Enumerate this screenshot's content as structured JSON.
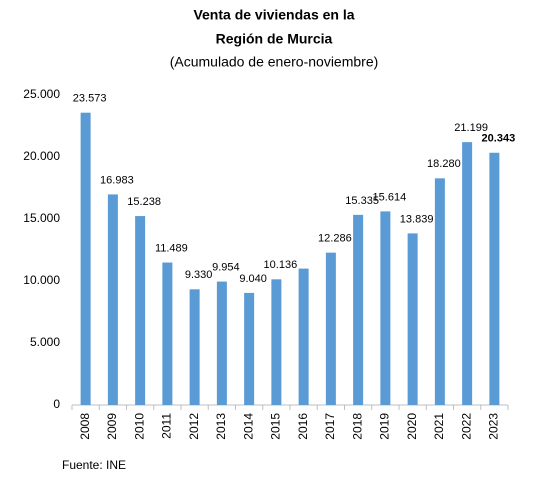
{
  "chart_data": {
    "type": "bar",
    "title": [
      "Venta de viviendas en la",
      "Región de Murcia"
    ],
    "subtitle": "(Acumulado de enero-noviembre)",
    "source": "Fuente: INE",
    "categories": [
      "2008",
      "2009",
      "2010",
      "2011",
      "2012",
      "2013",
      "2014",
      "2015",
      "2016",
      "2017",
      "2018",
      "2019",
      "2020",
      "2021",
      "2022",
      "2023"
    ],
    "values": [
      23573,
      16983,
      15238,
      11489,
      9330,
      9954,
      9040,
      10136,
      11000,
      12286,
      15335,
      15614,
      13839,
      18280,
      21199,
      20343
    ],
    "value_labels": [
      "23.573",
      "16.983",
      "15.238",
      "11.489",
      "9.330",
      "9.954",
      "9.040",
      "10.136",
      null,
      "12.286",
      "15.335",
      "15.614",
      "13.839",
      "18.280",
      "21.199",
      "20.343"
    ],
    "color": "#5b9bd5",
    "ylim": [
      0,
      25000
    ],
    "yticks": [
      0,
      {
        "value": 5000,
        "label": "5.000"
      },
      {
        "value": 10000,
        "label": "10.000"
      },
      {
        "value": 15000,
        "label": "15.000"
      },
      {
        "value": 20000,
        "label": "20.000"
      },
      {
        "value": 25000,
        "label": "25.000"
      }
    ],
    "grid": false
  }
}
